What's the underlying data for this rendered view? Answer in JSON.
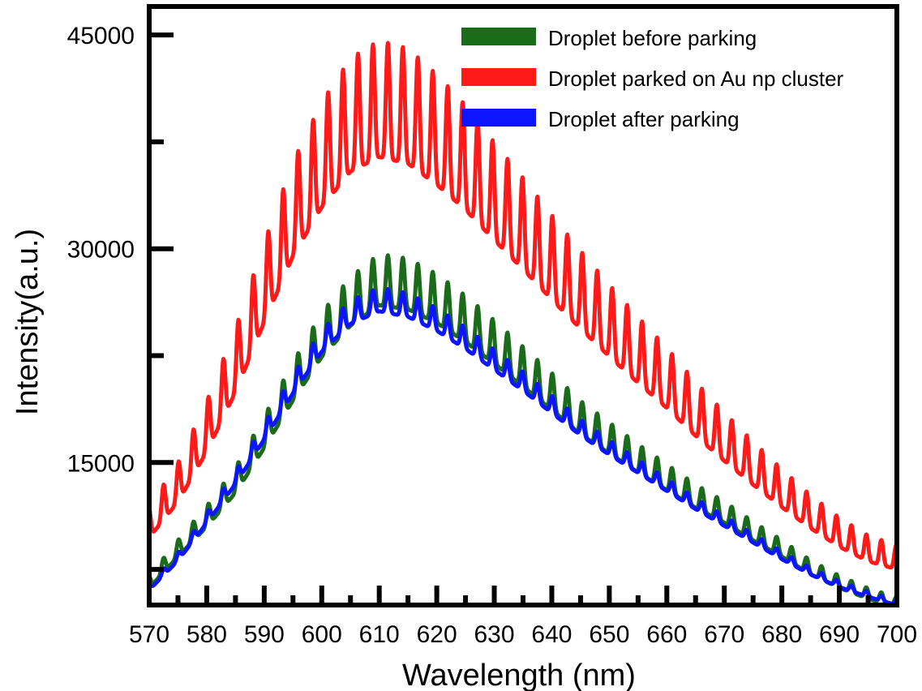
{
  "chart_data": {
    "type": "line",
    "title": "",
    "xlabel": "Wavelength (nm)",
    "ylabel": "Intensity(a.u.)",
    "xlim": [
      570,
      700
    ],
    "ylim": [
      5000,
      47000
    ],
    "x_major_ticks": [
      570,
      580,
      590,
      600,
      610,
      620,
      630,
      640,
      650,
      660,
      670,
      680,
      690,
      700
    ],
    "x_tick_labels": [
      "570",
      "580",
      "590",
      "600",
      "610",
      "620",
      "630",
      "640",
      "650",
      "660",
      "670",
      "680",
      "690",
      "700"
    ],
    "x_minor_ticks": [
      575,
      585,
      595,
      605,
      615,
      625,
      635,
      645,
      655,
      665,
      675,
      685,
      695
    ],
    "y_major_ticks": [
      15000,
      30000,
      45000
    ],
    "y_tick_labels": [
      "15000",
      "30000",
      "45000"
    ],
    "y_minor_ticks": [
      7500,
      22500,
      37500
    ],
    "grid": false,
    "legend_position": "top-right",
    "fringe_period_nm": 2.6,
    "series": [
      {
        "name": "Droplet before parking",
        "color": "#1a6b1a",
        "envelope": {
          "x": [
            570,
            575,
            580,
            585,
            590,
            595,
            600,
            605,
            610,
            615,
            620,
            625,
            630,
            635,
            640,
            645,
            650,
            655,
            660,
            665,
            670,
            675,
            680,
            685,
            690,
            695,
            700
          ],
          "y": [
            6500,
            8800,
            11000,
            13500,
            16800,
            20300,
            23500,
            25800,
            27300,
            27000,
            26000,
            24600,
            23000,
            21300,
            19600,
            17800,
            16400,
            15000,
            13700,
            12400,
            11300,
            10000,
            8800,
            7500,
            6500,
            5700,
            5100
          ]
        },
        "fringe_amplitude": 3300
      },
      {
        "name": "Droplet parked on Au np cluster",
        "color": "#ff1a1a",
        "envelope": {
          "x": [
            570,
            575,
            580,
            585,
            590,
            595,
            600,
            605,
            610,
            615,
            620,
            625,
            630,
            635,
            640,
            645,
            650,
            655,
            660,
            665,
            670,
            675,
            680,
            685,
            690,
            695,
            700
          ],
          "y": [
            10500,
            13200,
            17000,
            21500,
            26800,
            31800,
            35500,
            38200,
            39300,
            38800,
            37200,
            35300,
            33000,
            30800,
            28500,
            26300,
            24200,
            22200,
            20300,
            18200,
            16300,
            14500,
            12800,
            11200,
            9800,
            8700,
            8100
          ]
        },
        "fringe_amplitude": 5200
      },
      {
        "name": "Droplet after parking",
        "color": "#0d14ff",
        "envelope": {
          "x": [
            570,
            575,
            580,
            585,
            590,
            595,
            600,
            605,
            610,
            615,
            620,
            625,
            630,
            635,
            640,
            645,
            650,
            655,
            660,
            665,
            670,
            675,
            680,
            685,
            690,
            695,
            700
          ],
          "y": [
            6200,
            8300,
            11000,
            13800,
            17000,
            20300,
            23300,
            25300,
            26200,
            25800,
            24800,
            23500,
            22000,
            20500,
            18900,
            17300,
            15900,
            14600,
            13300,
            12000,
            10800,
            9600,
            8400,
            7300,
            6400,
            5700,
            5100
          ]
        },
        "fringe_amplitude": 1600
      }
    ]
  }
}
